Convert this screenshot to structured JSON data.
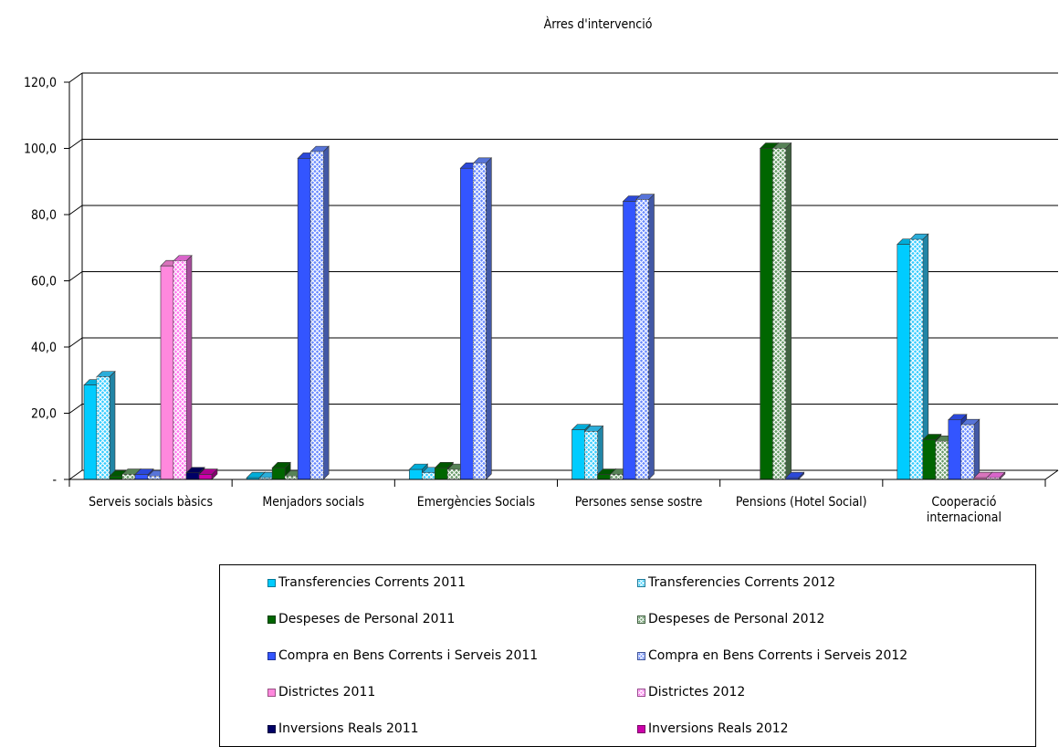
{
  "chart_data": {
    "type": "bar",
    "title": "Àrres d'intervenció",
    "xlabel": "",
    "ylabel": "",
    "ylim": [
      0,
      120
    ],
    "y_ticks": [
      "-",
      "20,0",
      "40,0",
      "60,0",
      "80,0",
      "100,0",
      "120,0"
    ],
    "grid": true,
    "legend_position": "bottom",
    "categories": [
      "Serveis socials bàsics",
      "Menjadors socials",
      "Emergències Socials",
      "Persones sense sostre",
      "Pensions (Hotel Social)",
      "Cooperació internacional"
    ],
    "category_lines": [
      [
        "Serveis socials bàsics"
      ],
      [
        "Menjadors socials"
      ],
      [
        "Emergències Socials"
      ],
      [
        "Persones sense sostre"
      ],
      [
        "Pensions (Hotel Social)"
      ],
      [
        "Cooperació",
        "internacional"
      ]
    ],
    "series": [
      {
        "name": "Transferencies Corrents 2011",
        "color": "#00ccff",
        "pattern": "solid",
        "values": [
          28.5,
          0.5,
          3.0,
          15.0,
          0,
          71.0
        ]
      },
      {
        "name": "Transferencies Corrents 2012",
        "color": "#33ccff",
        "pattern": "hatch",
        "values": [
          31.0,
          0.5,
          2.0,
          14.5,
          0,
          72.5
        ]
      },
      {
        "name": "Despeses de Personal 2011",
        "color": "#006600",
        "pattern": "solid",
        "values": [
          1.0,
          3.5,
          3.5,
          1.5,
          100.0,
          12.0
        ]
      },
      {
        "name": "Despeses de Personal 2012",
        "color": "#669966",
        "pattern": "hatch",
        "values": [
          1.5,
          1.0,
          3.0,
          1.5,
          100.0,
          11.5
        ]
      },
      {
        "name": "Compra en Bens Corrents i Serveis 2011",
        "color": "#3355ff",
        "pattern": "solid",
        "values": [
          1.5,
          97.0,
          94.0,
          84.0,
          0.5,
          18.0
        ]
      },
      {
        "name": "Compra en Bens Corrents i Serveis 2012",
        "color": "#6688ff",
        "pattern": "hatch",
        "values": [
          1.0,
          99.0,
          95.5,
          84.5,
          0,
          16.5
        ]
      },
      {
        "name": "Districtes 2011",
        "color": "#ff88dd",
        "pattern": "solid",
        "values": [
          64.5,
          0,
          0,
          0,
          0,
          0.5
        ]
      },
      {
        "name": "Districtes 2012",
        "color": "#ff77ee",
        "pattern": "hatch",
        "values": [
          66.0,
          0,
          0,
          0,
          0,
          0.5
        ]
      },
      {
        "name": "Inversions Reals 2011",
        "color": "#000066",
        "pattern": "solid",
        "values": [
          2.0,
          0,
          0,
          0,
          0,
          0
        ]
      },
      {
        "name": "Inversions Reals 2012",
        "color": "#cc00aa",
        "pattern": "solid",
        "values": [
          1.5,
          0,
          0,
          0,
          0,
          0
        ]
      }
    ]
  }
}
